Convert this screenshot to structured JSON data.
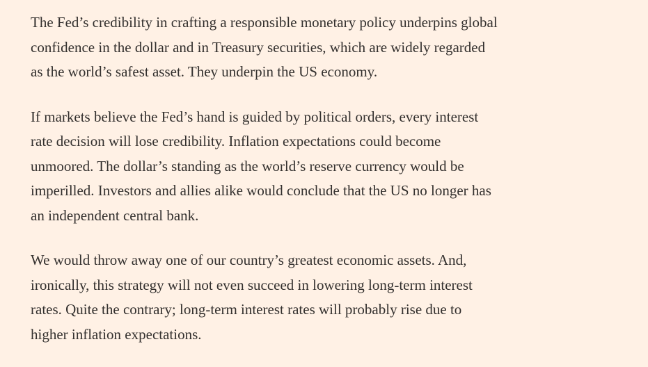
{
  "paragraphs": [
    {
      "lines": [
        "The Fed’s credibility in crafting a responsible monetary policy underpins global",
        "confidence in the dollar and in Treasury securities, which are widely regarded",
        "as the world’s safest asset. They underpin the US economy."
      ]
    },
    {
      "lines": [
        "If markets believe the Fed’s hand is guided by political orders, every interest",
        "rate decision will lose credibility. Inflation expectations could become",
        "unmoored. The dollar’s standing as the world’s reserve currency would be",
        "imperilled. Investors and allies alike would conclude that the US no longer has",
        "an independent central bank."
      ]
    },
    {
      "lines": [
        "We would throw away one of our country’s greatest economic assets. And,",
        "ironically, this strategy will not even succeed in lowering long-term interest",
        "rates. Quite the contrary; long-term interest rates will probably rise due to",
        "higher inflation expectations."
      ]
    }
  ]
}
